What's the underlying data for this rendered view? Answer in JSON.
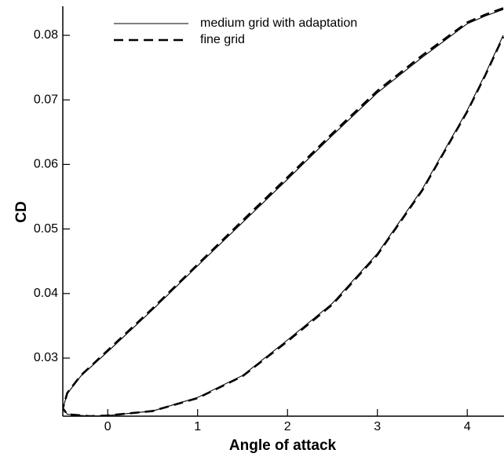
{
  "chart_data": {
    "type": "line",
    "xlabel": "Angle of attack",
    "ylabel": "CD",
    "xlim": [
      -0.5,
      4.4
    ],
    "ylim": [
      0.021,
      0.0845
    ],
    "xticks": [
      0,
      1,
      2,
      3,
      4
    ],
    "yticks": [
      0.03,
      0.04,
      0.05,
      0.06,
      0.07,
      0.08
    ],
    "legend": "top-left",
    "series": [
      {
        "name": "medium grid with adaptation",
        "color": "#000000",
        "dash": false,
        "x": [
          4.4,
          4.2,
          4.0,
          3.5,
          3.0,
          2.5,
          2.0,
          1.5,
          1.0,
          0.5,
          0,
          -0.3,
          -0.45,
          -0.5,
          -0.45,
          -0.2,
          0,
          0.5,
          1.0,
          1.5,
          2.0,
          2.5,
          3.0,
          3.5,
          4.0,
          4.2,
          4.4
        ],
        "values": [
          0.084,
          0.083,
          0.0818,
          0.0766,
          0.0711,
          0.0645,
          0.0577,
          0.051,
          0.0443,
          0.0375,
          0.031,
          0.0272,
          0.0245,
          0.0222,
          0.0213,
          0.021,
          0.0211,
          0.0218,
          0.0239,
          0.0273,
          0.0328,
          0.0385,
          0.0462,
          0.0562,
          0.0684,
          0.074,
          0.08
        ]
      },
      {
        "name": "fine grid",
        "color": "#000000",
        "dash": true,
        "x": [
          4.4,
          4.2,
          4.0,
          3.5,
          3.0,
          2.5,
          2.0,
          1.5,
          1.0,
          0.5,
          0,
          -0.3,
          -0.45,
          -0.5,
          -0.45,
          -0.2,
          0,
          0.5,
          1.0,
          1.5,
          2.0,
          2.5,
          3.0,
          3.5,
          4.0,
          4.2,
          4.4
        ],
        "values": [
          0.0842,
          0.0832,
          0.082,
          0.0769,
          0.0714,
          0.0648,
          0.058,
          0.0513,
          0.0445,
          0.0377,
          0.0312,
          0.0273,
          0.0246,
          0.0222,
          0.0213,
          0.021,
          0.0211,
          0.0218,
          0.0238,
          0.0272,
          0.0326,
          0.0383,
          0.046,
          0.056,
          0.0682,
          0.0738,
          0.0798
        ]
      }
    ]
  }
}
